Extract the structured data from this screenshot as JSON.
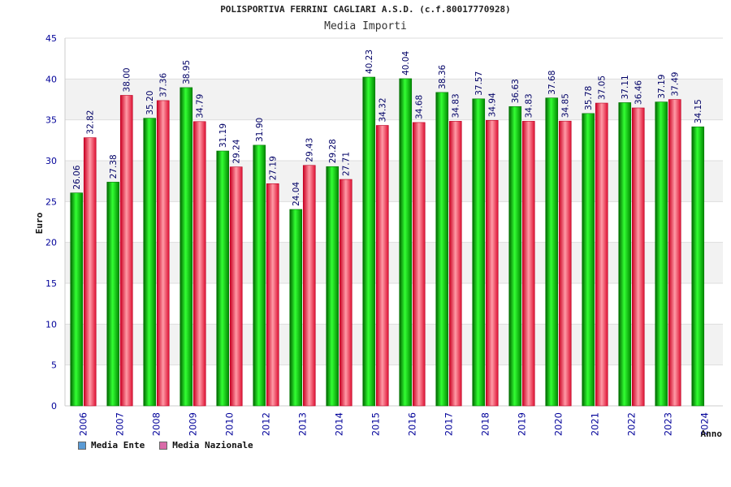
{
  "chart_data": {
    "type": "bar",
    "title": "POLISPORTIVA FERRINI CAGLIARI A.S.D. (c.f.80017770928)",
    "subtitle": "Media Importi",
    "ylabel": "Euro",
    "xlabel": "Anno",
    "ylim": [
      0,
      45
    ],
    "yticks": [
      0,
      5,
      10,
      15,
      20,
      25,
      30,
      35,
      40,
      45
    ],
    "categories": [
      "2006",
      "2007",
      "2008",
      "2009",
      "2010",
      "2012",
      "2013",
      "2014",
      "2015",
      "2016",
      "2017",
      "2018",
      "2019",
      "2020",
      "2021",
      "2022",
      "2023",
      "2024"
    ],
    "series": [
      {
        "name": "Media Ente",
        "color": "#00cc00",
        "values": [
          26.06,
          27.38,
          35.2,
          38.95,
          31.19,
          31.9,
          24.04,
          29.28,
          40.23,
          40.04,
          38.36,
          37.57,
          36.63,
          37.68,
          35.78,
          37.11,
          37.19,
          34.15
        ],
        "labels": [
          "26.06",
          "27.38",
          "35.20",
          "38.95",
          "31.19",
          "31.90",
          "24.04",
          "29.28",
          "40.23",
          "40.04",
          "38.36",
          "37.57",
          "36.63",
          "37.68",
          "35.78",
          "37.11",
          "37.19",
          "34.15"
        ]
      },
      {
        "name": "Media Nazionale",
        "color": "#ee2244",
        "values": [
          32.82,
          38.0,
          37.36,
          34.79,
          29.24,
          27.19,
          29.43,
          27.71,
          34.32,
          34.68,
          34.83,
          34.94,
          34.83,
          34.85,
          37.05,
          36.46,
          37.49,
          null
        ],
        "labels": [
          "32.82",
          "38.00",
          "37.36",
          "34.79",
          "29.24",
          "27.19",
          "29.43",
          "27.71",
          "34.32",
          "34.68",
          "34.83",
          "34.94",
          "34.83",
          "34.85",
          "37.05",
          "36.46",
          "37.49",
          null
        ]
      }
    ],
    "grid": true,
    "legend": [
      {
        "label": "Media Ente",
        "color": "#5b9bd5"
      },
      {
        "label": "Media Nazionale",
        "color": "#d96ba8"
      }
    ],
    "legend_position": "bottom-left"
  }
}
